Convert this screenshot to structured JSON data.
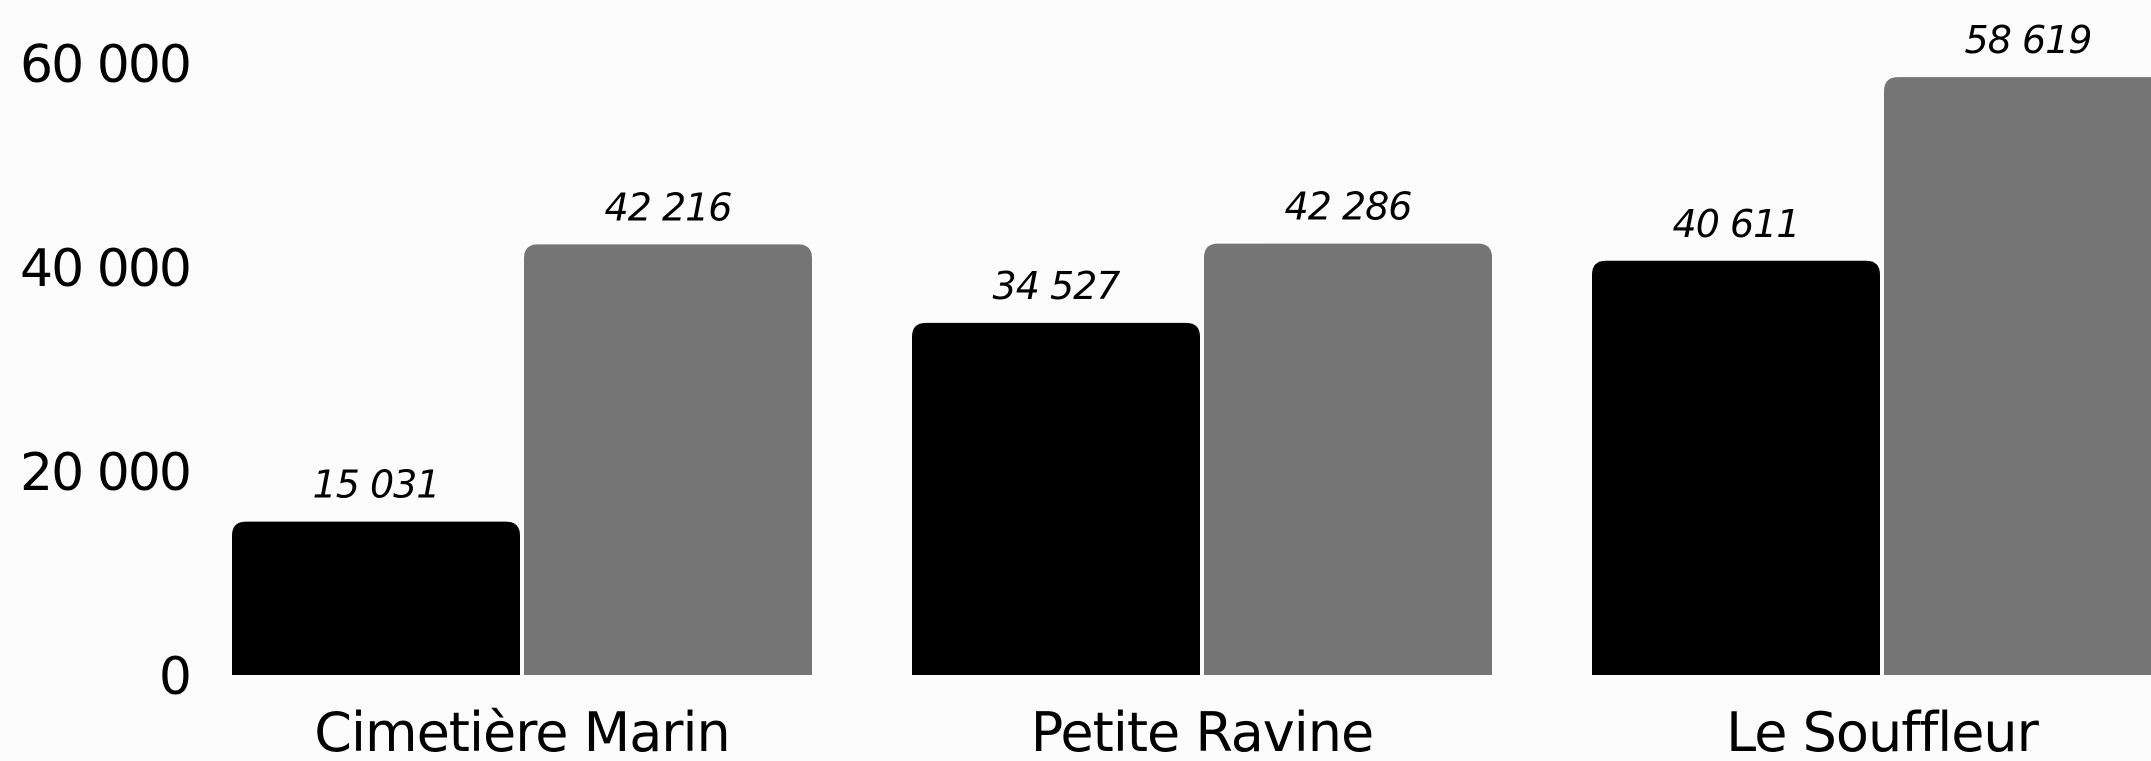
{
  "chart_data": {
    "type": "bar",
    "categories": [
      "Cimetière Marin",
      "Petite Ravine",
      "Le Souffleur"
    ],
    "series": [
      {
        "color": "#000000",
        "values": [
          15031,
          34527,
          40611
        ],
        "labels": [
          "15 031",
          "34 527",
          "40 611"
        ]
      },
      {
        "color": "#757575",
        "values": [
          42216,
          42286,
          58619
        ],
        "labels": [
          "42 216",
          "42 286",
          "58 619"
        ]
      }
    ],
    "yticks": [
      0,
      20000,
      40000,
      60000
    ],
    "ytick_labels": [
      "0",
      "20 000",
      "40 000",
      "60 000"
    ],
    "ylim": [
      0,
      60000
    ],
    "grid": false,
    "legend": "none",
    "title": "",
    "xlabel": "",
    "ylabel": ""
  }
}
